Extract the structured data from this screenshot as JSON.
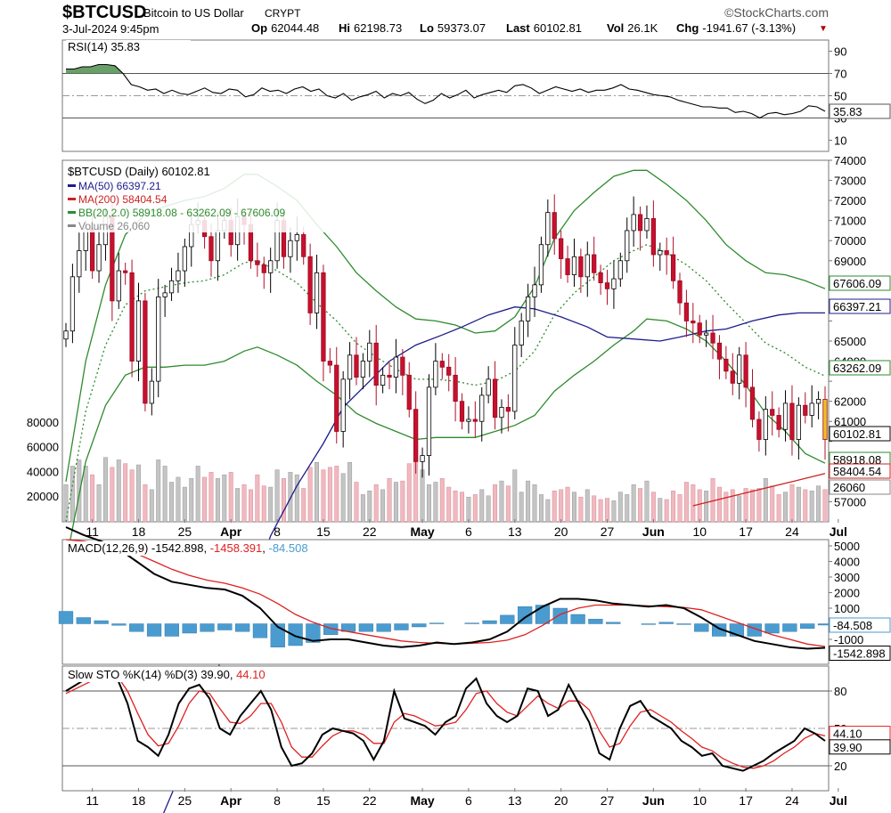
{
  "header": {
    "symbol": "$BTCUSD",
    "name": "Bitcoin to US Dollar",
    "exchange": "CRYPT",
    "credit": "©StockCharts.com",
    "datetime": "3-Jul-2024 9:45pm",
    "open_label": "Op",
    "open": "62044.48",
    "high_label": "Hi",
    "high": "62198.73",
    "low_label": "Lo",
    "low": "59373.07",
    "last_label": "Last",
    "last": "60102.81",
    "vol_label": "Vol",
    "vol": "26.1K",
    "chg_label": "Chg",
    "chg": "-1941.67 (-3.13%)",
    "down_color": "#b00000"
  },
  "chart_data": [
    {
      "type": "line",
      "panel": "rsi",
      "title": "RSI(14) 35.83",
      "ylim": [
        0,
        100
      ],
      "y_ticks": [
        10,
        30,
        50,
        70,
        90
      ],
      "y_ticklabels": [
        "10",
        "30",
        "50",
        "70",
        "90"
      ],
      "reference_lines": [
        30,
        50,
        70
      ],
      "last_value_label": "35.83",
      "series": [
        {
          "values": [
            74,
            74,
            76,
            76,
            78,
            78,
            77,
            70,
            60,
            58,
            55,
            56,
            52,
            55,
            52,
            51,
            54,
            57,
            53,
            52,
            56,
            55,
            49,
            51,
            57,
            54,
            55,
            52,
            56,
            58,
            54,
            56,
            50,
            48,
            52,
            46,
            49,
            51,
            54,
            48,
            52,
            50,
            53,
            47,
            43,
            46,
            52,
            48,
            51,
            55,
            48,
            51,
            53,
            55,
            53,
            59,
            60,
            57,
            52,
            55,
            58,
            56,
            54,
            56,
            53,
            55,
            55,
            57,
            60,
            56,
            55,
            53,
            51,
            50,
            49,
            46,
            44,
            42,
            40,
            40,
            39,
            39,
            35,
            36,
            34,
            30,
            34,
            35,
            33,
            34,
            36,
            41,
            40,
            36
          ]
        }
      ],
      "color": "#000000",
      "fill_above_70_color": "#4f8f4f"
    },
    {
      "type": "candlestick",
      "panel": "price",
      "title": "$BTCUSD (Daily) 60102.81",
      "ylim": [
        56000,
        74000
      ],
      "y_ticks": [
        57000,
        58000,
        59000,
        60000,
        61000,
        62000,
        63000,
        64000,
        65000,
        66000,
        67000,
        68000,
        69000,
        70000,
        71000,
        72000,
        73000,
        74000
      ],
      "y_ticklabels": [
        "57000",
        "",
        "",
        "",
        "61000",
        "62000",
        "",
        "64000",
        "65000",
        "",
        "",
        "",
        "69000",
        "70000",
        "71000",
        "72000",
        "73000",
        "74000"
      ],
      "x_ticklabels": [
        "11",
        "18",
        "25",
        "Apr",
        "8",
        "15",
        "22",
        "May",
        "6",
        "13",
        "20",
        "27",
        "Jun",
        "10",
        "17",
        "24",
        "Jul"
      ],
      "x_tick_index": [
        4,
        11,
        18,
        25,
        32,
        39,
        46,
        54,
        61,
        68,
        75,
        82,
        89,
        96,
        103,
        110,
        117
      ],
      "legend": [
        {
          "label": "MA(50) 66397.21",
          "color": "#1c1c8c"
        },
        {
          "label": "MA(200) 58404.54",
          "color": "#cc2222"
        },
        {
          "label": "BB(20,2.0) 58918.08 - 63262.09 - 67606.09",
          "color": "#2e8b2e"
        },
        {
          "label": "Volume 26,060",
          "color": "#888888"
        }
      ],
      "closes": [
        65500,
        68200,
        69500,
        70600,
        68500,
        69800,
        71200,
        67000,
        68500,
        68400,
        64000,
        67000,
        61900,
        63000,
        67200,
        67400,
        68000,
        68500,
        69700,
        70800,
        71000,
        70200,
        69000,
        70500,
        71000,
        69800,
        71200,
        70800,
        69000,
        68800,
        68400,
        69000,
        71000,
        69200,
        70000,
        70300,
        69200,
        66400,
        68400,
        64000,
        63800,
        60500,
        63100,
        64300,
        63200,
        64000,
        64900,
        62800,
        63300,
        63200,
        64200,
        63300,
        61600,
        59000,
        59300,
        62700,
        64000,
        63700,
        63300,
        62000,
        61000,
        61100,
        61000,
        62300,
        63100,
        61200,
        61700,
        61500,
        64800,
        66000,
        67200,
        67800,
        69800,
        71400,
        70100,
        69100,
        68300,
        69200,
        68200,
        69300,
        68400,
        67900,
        67600,
        68100,
        69000,
        70500,
        71300,
        70500,
        71100,
        69300,
        69500,
        69300,
        68000,
        66900,
        66000,
        65900,
        65300,
        65400,
        64900,
        64100,
        63500,
        62900,
        64300,
        62700,
        61100,
        60100,
        61600,
        61300,
        60600,
        61900,
        60100,
        61800,
        61300,
        61900,
        62100,
        60100
      ],
      "ma50": [
        40100,
        43200,
        46300,
        49500,
        52500,
        55300,
        57800,
        59900,
        61700,
        63000,
        64000,
        64800,
        65300,
        65700,
        66300,
        66700,
        66600,
        66200,
        65700,
        65200,
        65100,
        65000,
        65200,
        65500,
        65600,
        66000,
        66300,
        66400,
        66400
      ],
      "ma200_tail": [
        56800,
        57200,
        57600,
        58000,
        58404
      ],
      "bb_mid": [
        56000,
        61500,
        64800,
        66800,
        67500,
        67700,
        67900,
        68000,
        68300,
        68900,
        69000,
        68500,
        67900,
        66900,
        66000,
        64900,
        64200,
        63600,
        63100,
        63100,
        63000,
        62800,
        63000,
        63500,
        64500,
        66300,
        67400,
        68200,
        69000,
        69500,
        69800,
        69400,
        68800,
        68000,
        66900,
        65900,
        64900,
        64400,
        63700,
        63262
      ],
      "volumes": [
        30000,
        45000,
        50000,
        45000,
        38000,
        30000,
        52000,
        44000,
        50000,
        47000,
        42000,
        46000,
        30000,
        26000,
        50000,
        45000,
        32000,
        36000,
        28000,
        35000,
        45000,
        36000,
        40000,
        35000,
        38000,
        40000,
        27000,
        30000,
        26000,
        38000,
        29000,
        28000,
        42000,
        35000,
        40000,
        38000,
        27000,
        44000,
        48000,
        42000,
        44000,
        45000,
        39000,
        48000,
        32000,
        22000,
        25000,
        30000,
        26000,
        35000,
        32000,
        33000,
        47000,
        52000,
        42000,
        30000,
        32000,
        35000,
        28000,
        25000,
        24000,
        20000,
        22000,
        26000,
        21000,
        30000,
        33000,
        29000,
        42000,
        24000,
        33000,
        30000,
        22000,
        18000,
        25000,
        26000,
        28000,
        24000,
        20000,
        26000,
        21000,
        18000,
        19000,
        17000,
        24000,
        22000,
        30000,
        27000,
        33000,
        24000,
        19000,
        18000,
        25000,
        22000,
        32000,
        30000,
        26000,
        25000,
        35000,
        28000,
        24000,
        26000,
        21000,
        27000,
        26000,
        27000,
        35000,
        29000,
        22000,
        24000,
        30000,
        28000,
        26000,
        25000,
        29000,
        26060
      ],
      "volume_axis_ticks": [
        "80000",
        "60000",
        "40000",
        "20000"
      ],
      "right_labels": [
        "67606.09",
        "66397.21",
        "63262.09",
        "60102.81",
        "58918.08",
        "58404.54",
        "26060"
      ]
    },
    {
      "type": "line",
      "panel": "macd",
      "title": "MACD(12,26,9) -1542.898, -1458.391, -84.508",
      "parts": {
        "main": "MACD(12,26,9) -1542.898",
        "signal": "-1458.391",
        "hist": "-84.508"
      },
      "ylim": [
        -2600,
        5400
      ],
      "y_ticks": [
        -2000,
        -1000,
        0,
        1000,
        2000,
        3000,
        4000,
        5000
      ],
      "y_ticklabels": [
        "-2000",
        "-1000",
        "0",
        "1000",
        "2000",
        "3000",
        "4000",
        "5000"
      ],
      "right_labels": [
        "-84.508",
        "-1542.898"
      ],
      "series": [
        {
          "name": "MACD",
          "color": "#000000",
          "values": [
            6200,
            5700,
            5300,
            4800,
            4000,
            3200,
            2700,
            2500,
            2300,
            2200,
            1800,
            1000,
            -200,
            -800,
            -1100,
            -1000,
            -1000,
            -1200,
            -1400,
            -1500,
            -1400,
            -1200,
            -1300,
            -1200,
            -1000,
            -500,
            400,
            1100,
            1600,
            1600,
            1500,
            1300,
            1200,
            1100,
            1200,
            1000,
            400,
            -300,
            -700,
            -1100,
            -1300,
            -1500,
            -1600,
            -1543
          ]
        },
        {
          "name": "Signal",
          "color": "#e02020",
          "values": [
            5400,
            5300,
            5100,
            4900,
            4500,
            4000,
            3500,
            3100,
            2800,
            2600,
            2300,
            1900,
            1300,
            600,
            100,
            -300,
            -500,
            -700,
            -900,
            -1100,
            -1200,
            -1250,
            -1300,
            -1250,
            -1200,
            -1050,
            -700,
            -100,
            600,
            1000,
            1200,
            1200,
            1200,
            1150,
            1100,
            1050,
            900,
            500,
            100,
            -300,
            -700,
            -1000,
            -1300,
            -1458
          ]
        },
        {
          "name": "Histogram",
          "color": "#4a9cd0",
          "values": [
            800,
            400,
            200,
            -100,
            -500,
            -800,
            -800,
            -600,
            -500,
            -400,
            -500,
            -900,
            -1500,
            -1400,
            -1200,
            -700,
            -500,
            -500,
            -500,
            -400,
            -200,
            50,
            0,
            50,
            200,
            550,
            1100,
            1200,
            1000,
            600,
            300,
            100,
            0,
            -50,
            100,
            -50,
            -500,
            -800,
            -800,
            -800,
            -600,
            -500,
            -300,
            -85
          ]
        }
      ]
    },
    {
      "type": "line",
      "panel": "stochastic",
      "title": "Slow STO %K(14) %D(3) 39.90, 44.10",
      "parts": {
        "main": "Slow STO %K(14) %D(3) 39.90",
        "d": "44.10"
      },
      "ylim": [
        0,
        100
      ],
      "y_ticks": [
        20,
        50,
        80
      ],
      "y_ticklabels": [
        "20",
        "50",
        "80"
      ],
      "reference_lines": [
        20,
        50,
        80
      ],
      "right_labels": [
        "44.10",
        "39.90"
      ],
      "series": [
        {
          "name": "%K",
          "color": "#000000",
          "values": [
            80,
            85,
            90,
            95,
            96,
            90,
            70,
            40,
            35,
            28,
            45,
            70,
            82,
            85,
            74,
            50,
            45,
            60,
            70,
            80,
            65,
            35,
            20,
            22,
            30,
            45,
            50,
            48,
            46,
            40,
            25,
            40,
            80,
            58,
            55,
            52,
            45,
            55,
            60,
            82,
            90,
            70,
            60,
            55,
            60,
            82,
            80,
            60,
            65,
            85,
            70,
            55,
            30,
            25,
            50,
            68,
            72,
            60,
            55,
            50,
            40,
            35,
            28,
            30,
            20,
            18,
            16,
            20,
            24,
            30,
            35,
            40,
            50,
            46,
            40
          ]
        },
        {
          "name": "%D",
          "color": "#e02020",
          "values": [
            78,
            82,
            86,
            90,
            92,
            92,
            80,
            62,
            45,
            36,
            38,
            52,
            70,
            80,
            78,
            66,
            55,
            54,
            60,
            70,
            70,
            55,
            35,
            27,
            27,
            36,
            44,
            48,
            48,
            45,
            38,
            38,
            55,
            62,
            60,
            56,
            52,
            53,
            55,
            65,
            78,
            80,
            70,
            63,
            60,
            68,
            76,
            70,
            66,
            72,
            72,
            65,
            48,
            35,
            38,
            52,
            63,
            65,
            60,
            55,
            48,
            42,
            35,
            32,
            26,
            22,
            19,
            18,
            20,
            24,
            30,
            35,
            42,
            46,
            44
          ]
        }
      ],
      "x_ticklabels": [
        "11",
        "18",
        "25",
        "Apr",
        "8",
        "15",
        "22",
        "May",
        "6",
        "13",
        "20",
        "27",
        "Jun",
        "10",
        "17",
        "24",
        "Jul"
      ]
    }
  ]
}
